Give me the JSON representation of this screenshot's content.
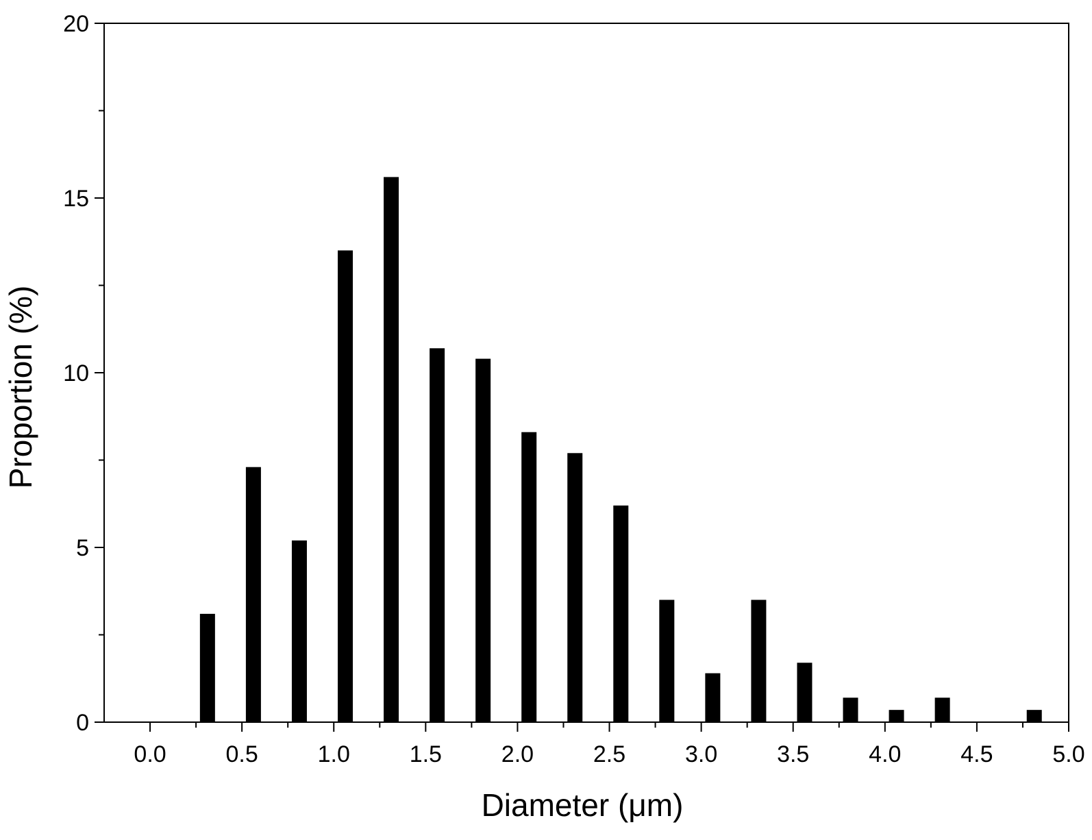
{
  "chart_data": {
    "type": "bar",
    "xlabel": "Diameter (μm)",
    "ylabel": "Proportion (%)",
    "xlim": [
      -0.25,
      5.0
    ],
    "ylim": [
      0,
      20
    ],
    "xticks": [
      "0.0",
      "0.5",
      "1.0",
      "1.5",
      "2.0",
      "2.5",
      "3.0",
      "3.5",
      "4.0",
      "4.5",
      "5.0"
    ],
    "yticks": [
      "0",
      "5",
      "10",
      "15",
      "20"
    ],
    "x": [
      0.3125,
      0.5625,
      0.8125,
      1.0625,
      1.3125,
      1.5625,
      1.8125,
      2.0625,
      2.3125,
      2.5625,
      2.8125,
      3.0625,
      3.3125,
      3.5625,
      3.8125,
      4.0625,
      4.3125,
      4.5625,
      4.8125
    ],
    "values": [
      3.1,
      7.3,
      5.2,
      13.5,
      15.6,
      10.7,
      10.4,
      8.3,
      7.7,
      6.2,
      3.5,
      1.4,
      3.5,
      1.7,
      0.7,
      0.35,
      0.7,
      0,
      0.35
    ],
    "bar_color": "#000000",
    "grid": false,
    "legend": "none"
  }
}
